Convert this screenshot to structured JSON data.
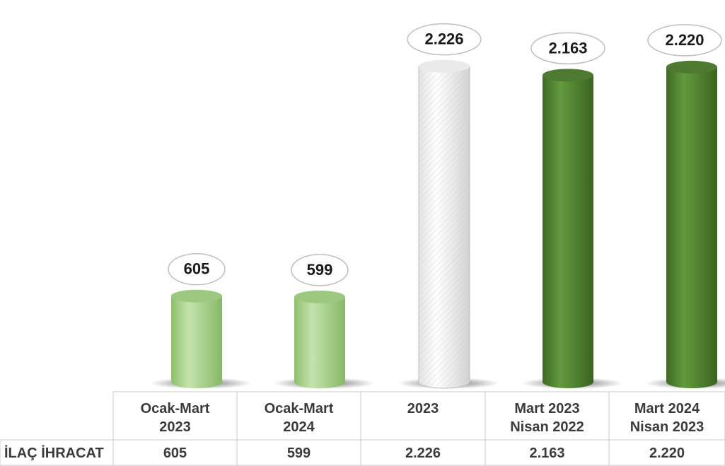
{
  "chart_data": {
    "type": "bar",
    "categories": [
      [
        "Ocak-Mart",
        "2023"
      ],
      [
        "Ocak-Mart",
        "2024"
      ],
      [
        "2023"
      ],
      [
        "Mart 2023",
        "Nisan 2022"
      ],
      [
        "Mart 2024",
        "Nisan 2023"
      ]
    ],
    "series": [
      {
        "name": "İLAÇ İHRACAT",
        "values": [
          605,
          599,
          2226,
          2163,
          2220
        ],
        "value_labels": [
          "605",
          "599",
          "2.226",
          "2.163",
          "2.220"
        ]
      }
    ],
    "bar_colors": [
      "#a9d18e",
      "#a9d18e",
      "#f2f2f2",
      "#548235",
      "#548235"
    ],
    "bar_style": "3d-cylinder",
    "data_table": true,
    "grid": false
  }
}
